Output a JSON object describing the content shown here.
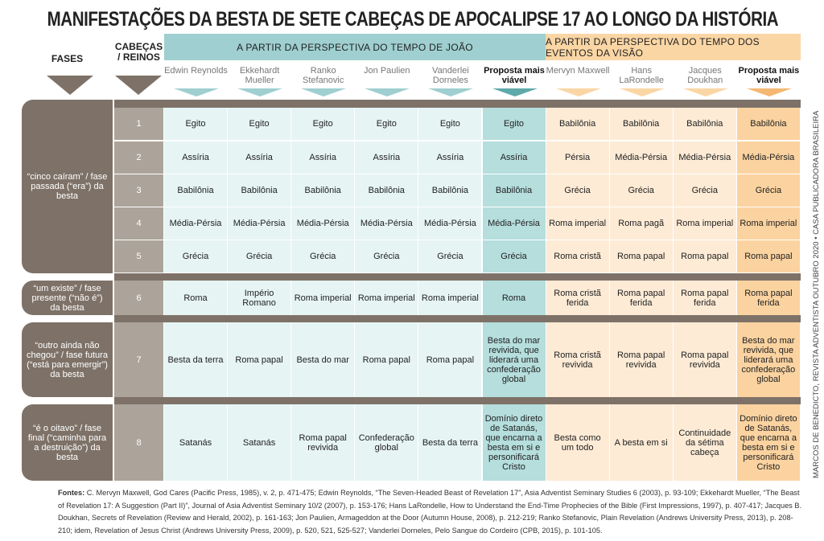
{
  "title": "MANIFESTAÇÕES DA BESTA DE SETE CABEÇAS DE APOCALIPSE 17 AO LONGO DA HISTÓRIA",
  "headers": {
    "fases": "FASES",
    "cabecas": "CABEÇAS / REINOS",
    "joao": "A PARTIR DA PERSPECTIVA DO TEMPO DE JOÃO",
    "visao": "A PARTIR DA PERSPECTIVA DO TEMPO DOS EVENTOS DA VISÃO"
  },
  "authors": [
    "Edwin Reynolds",
    "Ekkehardt Mueller",
    "Ranko Stefanovic",
    "Jon Paulien",
    "Vanderlei Dorneles",
    "Proposta mais viável",
    "Mervyn Maxwell",
    "Hans LaRondelle",
    "Jacques Doukhan",
    "Proposta mais viável"
  ],
  "fases": [
    "“cinco caíram” / fase passada (“era”) da besta",
    "“um existe” / fase presente (“não é”) da besta",
    "“outro ainda não chegou” / fase futura (“está para emergir”) da besta",
    "“é o oitavo” / fase final (“caminha para a destruição”) da besta"
  ],
  "rows": [
    {
      "num": "1",
      "cells": [
        "Egito",
        "Egito",
        "Egito",
        "Egito",
        "Egito",
        "Egito",
        "Babilônia",
        "Babilônia",
        "Babilônia",
        "Babilônia"
      ]
    },
    {
      "num": "2",
      "cells": [
        "Assíria",
        "Assíria",
        "Assíria",
        "Assíria",
        "Assíria",
        "Assíria",
        "Pérsia",
        "Média-Pérsia",
        "Média-Pérsia",
        "Média-Pérsia"
      ]
    },
    {
      "num": "3",
      "cells": [
        "Babilônia",
        "Babilônia",
        "Babilônia",
        "Babilônia",
        "Babilônia",
        "Babilônia",
        "Grécia",
        "Grécia",
        "Grécia",
        "Grécia"
      ]
    },
    {
      "num": "4",
      "cells": [
        "Média-Pérsia",
        "Média-Pérsia",
        "Média-Pérsia",
        "Média-Pérsia",
        "Média-Pérsia",
        "Média-Pérsia",
        "Roma imperial",
        "Roma pagã",
        "Roma imperial",
        "Roma imperial"
      ]
    },
    {
      "num": "5",
      "cells": [
        "Grécia",
        "Grécia",
        "Grécia",
        "Grécia",
        "Grécia",
        "Grécia",
        "Roma cristã",
        "Roma papal",
        "Roma papal",
        "Roma papal"
      ]
    },
    {
      "num": "6",
      "cells": [
        "Roma",
        "Império Romano",
        "Roma imperial",
        "Roma imperial",
        "Roma imperial",
        "Roma",
        "Roma cristã ferida",
        "Roma papal ferida",
        "Roma papal ferida",
        "Roma papal ferida"
      ]
    },
    {
      "num": "7",
      "cells": [
        "Besta da terra",
        "Roma papal",
        "Besta do mar",
        "Roma papal",
        "Roma papal",
        "Besta do mar revivida, que liderará uma confederação global",
        "Roma cristã revivida",
        "Roma papal revivida",
        "Roma papal revivida",
        "Besta do mar revivida, que liderará uma confederação global"
      ]
    },
    {
      "num": "8",
      "cells": [
        "Satanás",
        "Satanás",
        "Roma papal revivida",
        "Confederação global",
        "Besta da terra",
        "Domínio direto de Satanás, que encarna a besta em si e personificará Cristo",
        "Besta como um todo",
        "A besta em si",
        "Continuidade da sétima cabeça",
        "Domínio direto de Satanás, que encarna a besta em si e personificará Cristo"
      ]
    }
  ],
  "colors": {
    "brown": "#7e7268",
    "teal": "#9fcfd0",
    "teal_light": "#e6f4f4",
    "teal_hl": "#b5dedd",
    "orange": "#fbd6a5",
    "orange_light": "#fdebd6",
    "orange_hl": "#fbd3a0"
  },
  "fontes_label": "Fontes:",
  "fontes": "C. Mervyn Maxwell, God Cares (Pacific Press, 1985), v. 2, p. 471-475; Edwin Reynolds, “The Seven-Headed Beast of Revelation 17”, Asia Adventist Seminary Studies 6 (2003), p. 93-109; Ekkehardt Mueller, “The Beast of Revelation 17: A Suggestion (Part II)”, Journal of Asia Adventist Seminary 10/2 (2007), p. 153-176; Hans LaRondelle, How to Understand the End-Time Prophecies of the Bible (First Impressions, 1997), p. 407-417; Jacques B. Doukhan, Secrets of Revelation (Review and Herald, 2002), p. 161-163; Jon Paulien, Armageddon at the Door (Autumn House, 2008), p. 212-219; Ranko Stefanovic, Plain Revelation (Andrews University Press, 2013), p. 208-210; idem, Revelation of Jesus Christ (Andrews University Press, 2009), p. 520, 521, 525-527; Vanderlei Dorneles, Pelo Sangue do Cordeiro (CPB, 2015), p. 101-105.",
  "side_credit": "MARCOS DE BENEDICTO, REVISTA ADVENTISTA OUTUBRO 2020 • CASA PUBLICADORA BRASILEIRA"
}
